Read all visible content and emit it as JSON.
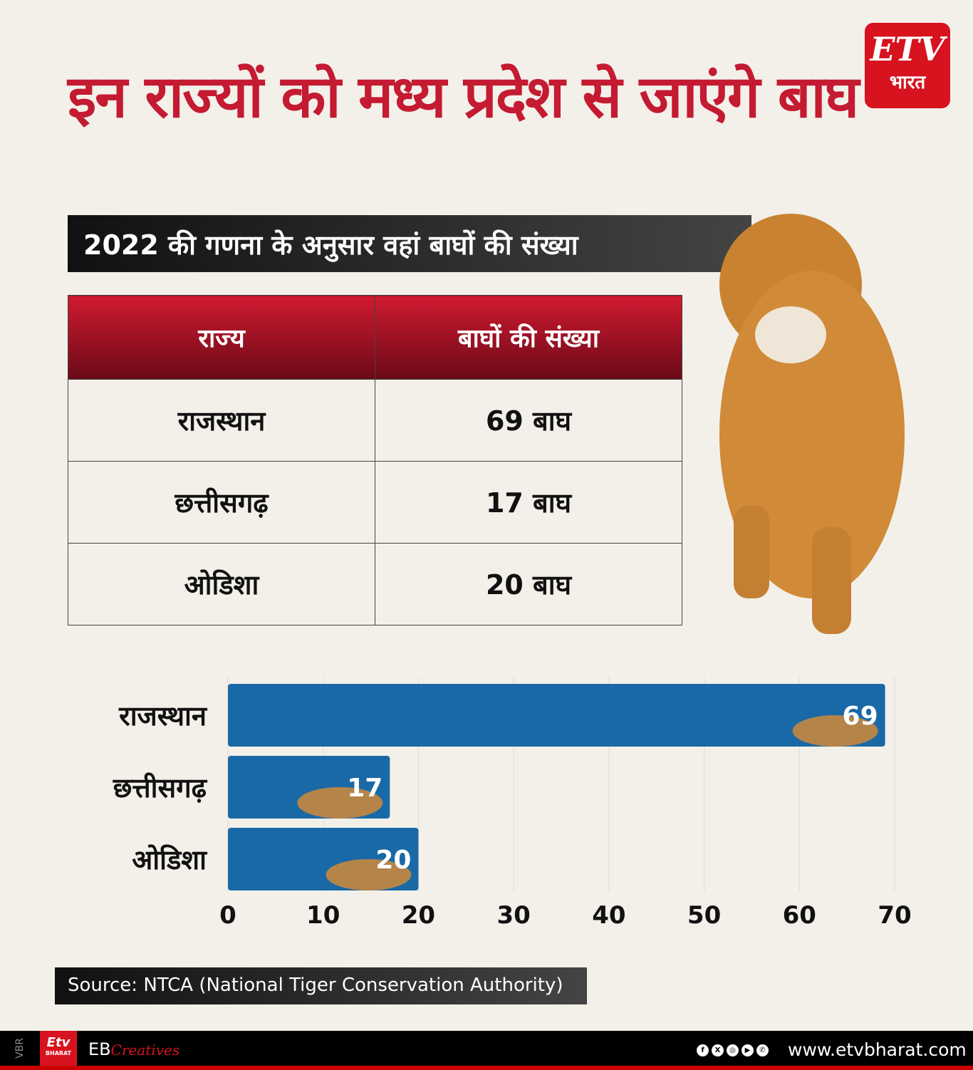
{
  "title": "इन राज्यों को मध्य प्रदेश से जाएंगे बाघ",
  "logo": {
    "brand": "ETV",
    "sub": "भारत"
  },
  "subtitle": "2022 की गणना के अनुसार वहां बाघों की संख्या",
  "table": {
    "headers": [
      "राज्य",
      "बाघों की संख्या"
    ],
    "rows": [
      [
        "राजस्थान",
        "69 बाघ"
      ],
      [
        "छत्तीसगढ़",
        "17 बाघ"
      ],
      [
        "ओडिशा",
        "20 बाघ"
      ]
    ]
  },
  "chart_data": {
    "type": "bar",
    "orientation": "horizontal",
    "categories": [
      "राजस्थान",
      "छत्तीसगढ़",
      "ओडिशा"
    ],
    "values": [
      69,
      17,
      20
    ],
    "xlim": [
      0,
      70
    ],
    "xticks": [
      0,
      10,
      20,
      30,
      40,
      50,
      60,
      70
    ],
    "grid": true,
    "bar_color": "#1a69a7"
  },
  "source": "Source: NTCA (National Tiger Conservation Authority)",
  "footer": {
    "side": "VBR",
    "logo": "Etv",
    "logo_sub": "BHARAT",
    "eb": "EB",
    "creatives": "Creatives",
    "social": [
      "facebook-icon",
      "x-icon",
      "instagram-icon",
      "youtube-icon",
      "whatsapp-icon"
    ],
    "url": "www.etvbharat.com"
  }
}
